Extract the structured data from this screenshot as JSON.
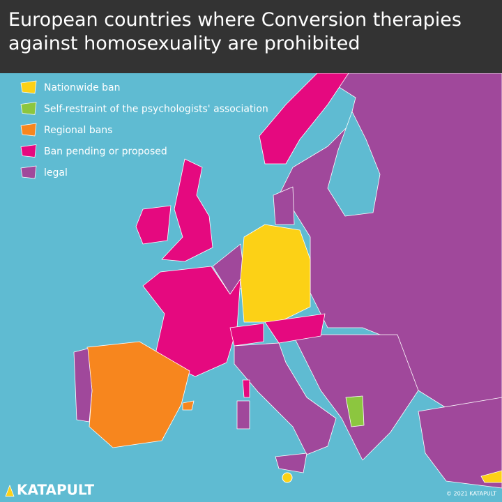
{
  "header": {
    "title": "European countries where Conversion therapies against homosexuality are prohibited"
  },
  "legend": [
    {
      "label": "Nationwide ban",
      "color": "#fcd116"
    },
    {
      "label": "Self-restraint of the psychologists' association",
      "color": "#8cc63f"
    },
    {
      "label": "Regional bans",
      "color": "#f7861e"
    },
    {
      "label": "Ban pending or proposed",
      "color": "#e5097f"
    },
    {
      "label": "legal",
      "color": "#a0489b"
    }
  ],
  "brand": "KATAPULT",
  "credit": "© 2021 KATAPULT"
}
